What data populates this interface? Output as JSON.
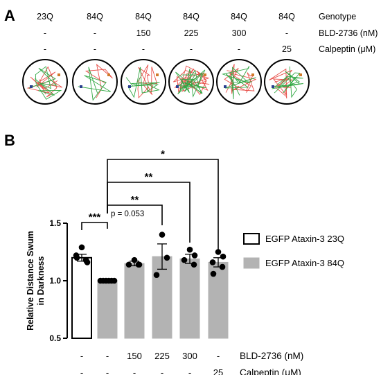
{
  "panel_a": {
    "letter": "A",
    "row_labels": [
      "Genotype",
      "BLD-2736 (nM)",
      "Calpeptin (μM)"
    ],
    "columns": [
      {
        "genotype": "23Q",
        "bld": "-",
        "calpeptin": "-"
      },
      {
        "genotype": "84Q",
        "bld": "-",
        "calpeptin": "-"
      },
      {
        "genotype": "84Q",
        "bld": "150",
        "calpeptin": "-"
      },
      {
        "genotype": "84Q",
        "bld": "225",
        "calpeptin": "-"
      },
      {
        "genotype": "84Q",
        "bld": "300",
        "calpeptin": "-"
      },
      {
        "genotype": "84Q",
        "bld": "-",
        "calpeptin": "25"
      }
    ],
    "colors": {
      "track_red": "#e8504a",
      "track_green": "#33a845",
      "marker_blue": "#2a3f8f",
      "marker_orange": "#d07a2a"
    }
  },
  "panel_b": {
    "letter": "B",
    "x_row_labels": [
      "BLD-2736 (nM)",
      "Calpeptin (μM)"
    ],
    "p_annotation": "p = 0.053"
  },
  "chart_data": {
    "type": "bar",
    "ylabel": "Relative Distance Swum\nin Darkness",
    "ylim": [
      0.5,
      1.5
    ],
    "yticks": [
      0.5,
      1.0,
      1.5
    ],
    "ytick_labels": [
      "0.5",
      "1.0",
      "1.5"
    ],
    "legend": {
      "placement": "right",
      "entries": [
        {
          "label": "EGFP Ataxin-3 23Q",
          "fill": "#ffffff",
          "stroke": "#000000"
        },
        {
          "label": "EGFP Ataxin-3 84Q",
          "fill": "#b3b3b3",
          "stroke": "#b3b3b3"
        }
      ]
    },
    "categories": [
      {
        "bld": "-",
        "calpeptin": "-"
      },
      {
        "bld": "-",
        "calpeptin": "-"
      },
      {
        "bld": "150",
        "calpeptin": "-"
      },
      {
        "bld": "225",
        "calpeptin": "-"
      },
      {
        "bld": "300",
        "calpeptin": "-"
      },
      {
        "bld": "-",
        "calpeptin": "25"
      }
    ],
    "series": [
      {
        "group": "23Q",
        "bar_index": 0,
        "mean": 1.2,
        "sem": 0.03,
        "points": [
          1.29,
          1.17,
          1.22,
          1.18,
          1.2,
          1.16
        ]
      },
      {
        "group": "84Q",
        "bar_index": 1,
        "mean": 1.0,
        "sem": 0.0,
        "points": [
          1.0,
          1.0,
          1.0,
          1.0,
          1.0,
          1.0
        ]
      },
      {
        "group": "84Q",
        "bar_index": 2,
        "mean": 1.15,
        "sem": 0.02,
        "points": [
          1.18,
          1.14,
          1.14,
          1.14
        ]
      },
      {
        "group": "84Q",
        "bar_index": 3,
        "mean": 1.21,
        "sem": 0.11,
        "points": [
          1.4,
          1.2,
          1.05
        ]
      },
      {
        "group": "84Q",
        "bar_index": 4,
        "mean": 1.19,
        "sem": 0.04,
        "points": [
          1.27,
          1.22,
          1.18,
          1.14
        ]
      },
      {
        "group": "84Q",
        "bar_index": 5,
        "mean": 1.16,
        "sem": 0.04,
        "points": [
          1.25,
          1.21,
          1.16,
          1.12,
          1.06
        ]
      }
    ],
    "significance": [
      {
        "from": 0,
        "to": 1,
        "label": "***"
      },
      {
        "from": 1,
        "to": 3,
        "label": "**"
      },
      {
        "from": 1,
        "to": 4,
        "label": "**"
      },
      {
        "from": 1,
        "to": 5,
        "label": "*"
      }
    ]
  }
}
